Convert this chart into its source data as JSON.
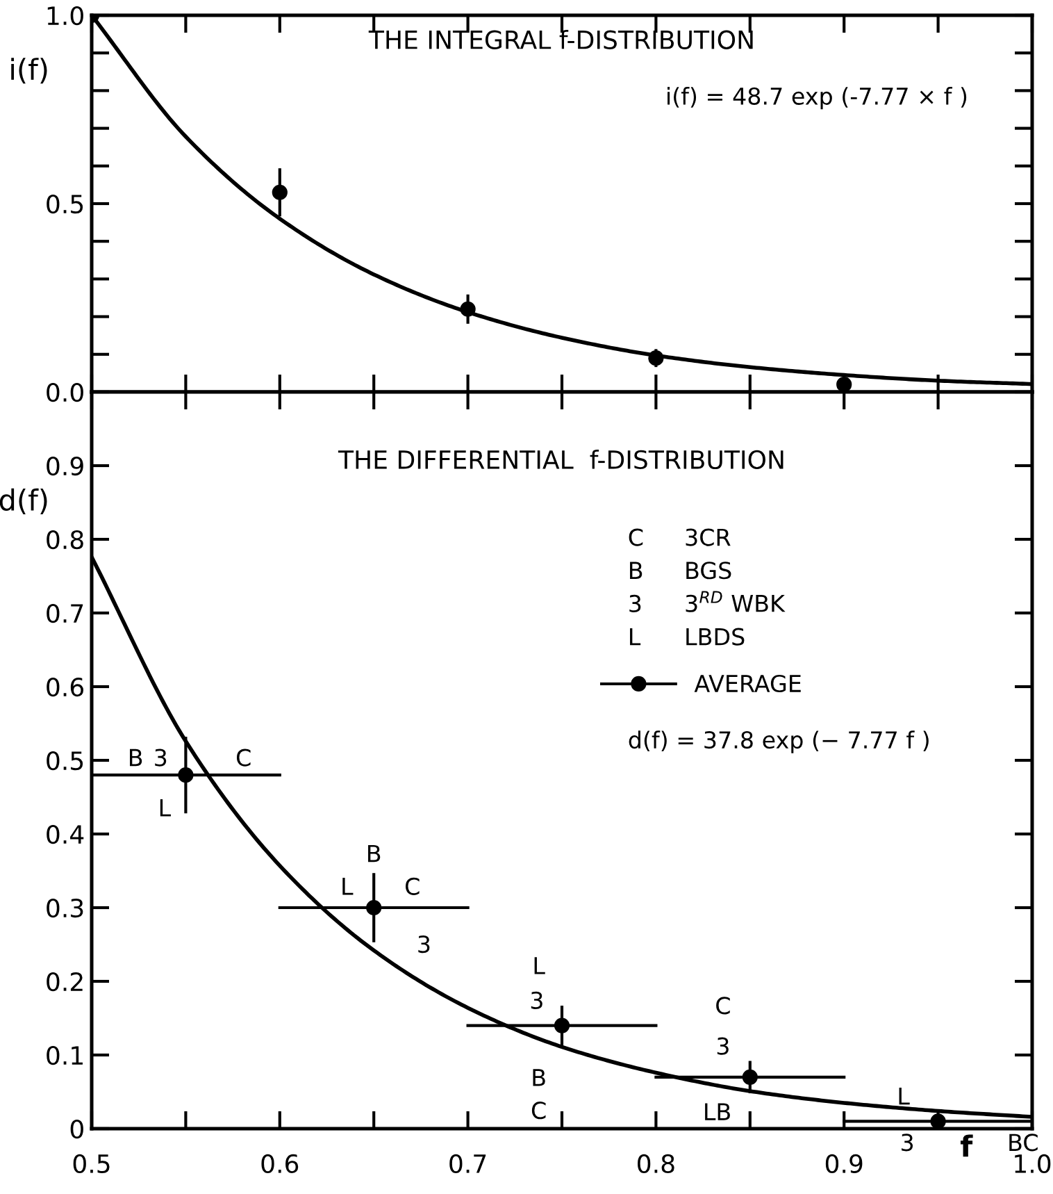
{
  "chart_data": [
    {
      "type": "scatter",
      "title": "THE INTEGRAL f-DISTRIBUTION",
      "ylabel": "i(f)",
      "xlim": [
        0.5,
        1.0
      ],
      "ylim": [
        0,
        1.0
      ],
      "xticks": [
        {
          "value": 0.5,
          "label": null
        },
        {
          "value": 0.55,
          "label": null
        },
        {
          "value": 0.6,
          "label": null
        },
        {
          "value": 0.65,
          "label": null
        },
        {
          "value": 0.7,
          "label": null
        },
        {
          "value": 0.75,
          "label": null
        },
        {
          "value": 0.8,
          "label": null
        },
        {
          "value": 0.85,
          "label": null
        },
        {
          "value": 0.9,
          "label": null
        },
        {
          "value": 0.95,
          "label": null
        },
        {
          "value": 1.0,
          "label": null
        }
      ],
      "yticks": [
        {
          "value": 0,
          "label": "0.0"
        },
        {
          "value": 0.1,
          "label": null
        },
        {
          "value": 0.2,
          "label": null
        },
        {
          "value": 0.3,
          "label": null
        },
        {
          "value": 0.4,
          "label": null
        },
        {
          "value": 0.5,
          "label": "0.5"
        },
        {
          "value": 0.6,
          "label": null
        },
        {
          "value": 0.7,
          "label": null
        },
        {
          "value": 0.8,
          "label": null
        },
        {
          "value": 0.9,
          "label": null
        },
        {
          "value": 1.0,
          "label": "1.0"
        }
      ],
      "tick_labels": "y",
      "grid": false,
      "annotations": [
        "i(f) = 48.7 exp (-7.77 × f )"
      ],
      "series": [
        {
          "color": "#000000",
          "marker": "circle",
          "x": [
            0.5,
            0.6,
            0.7,
            0.8,
            0.9
          ],
          "values": [
            1.0,
            0.53,
            0.22,
            0.09,
            0.02
          ],
          "errors": [
            null,
            0.06,
            0.035,
            0.02,
            null
          ]
        },
        {
          "type": "line",
          "color": "#000000",
          "line_style": "solid",
          "x": [
            0.5,
            0.55,
            0.6,
            0.65,
            0.7,
            0.75,
            0.8,
            0.85,
            0.9,
            0.95,
            1.0
          ],
          "values": [
            1.0,
            0.678,
            0.46,
            0.312,
            0.212,
            0.144,
            0.097,
            0.066,
            0.045,
            0.03,
            0.021
          ]
        }
      ]
    },
    {
      "type": "scatter",
      "title": "THE DIFFERENTIAL  f-DISTRIBUTION",
      "ylabel": "d(f)",
      "xlabel": "f",
      "xlim": [
        0.5,
        1.0
      ],
      "ylim": [
        0,
        1.0
      ],
      "xticks": [
        {
          "value": 0.5,
          "label": "0.5"
        },
        {
          "value": 0.55,
          "label": null
        },
        {
          "value": 0.6,
          "label": "0.6"
        },
        {
          "value": 0.65,
          "label": null
        },
        {
          "value": 0.7,
          "label": "0.7"
        },
        {
          "value": 0.75,
          "label": null
        },
        {
          "value": 0.8,
          "label": "0.8"
        },
        {
          "value": 0.85,
          "label": null
        },
        {
          "value": 0.9,
          "label": "0.9"
        },
        {
          "value": 0.95,
          "label": null
        },
        {
          "value": 1.0,
          "label": "1.0"
        }
      ],
      "yticks": [
        0,
        0.1,
        0.2,
        0.3,
        0.4,
        0.5,
        0.6,
        0.7,
        0.8,
        0.9,
        {
          "value": 1.0,
          "label": null
        }
      ],
      "grid": false,
      "legend": "top",
      "annotations": [
        "C",
        "3CR",
        "B",
        "BGS",
        "3",
        "3$^{RD}$ WBK",
        "L",
        "LBDS",
        "d(f) = 37.8 exp (− 7.77 f )",
        "B",
        "3",
        "C",
        "L",
        "B",
        "L",
        "C",
        "3",
        "L",
        "3",
        "B",
        "C",
        "C",
        "3",
        "LB",
        "L",
        "3",
        "BC"
      ],
      "series": [
        {
          "name": "AVERAGE",
          "color": "#000000",
          "marker": "circle",
          "x": [
            0.55,
            0.65,
            0.75,
            0.85,
            0.95
          ],
          "values": [
            0.48,
            0.3,
            0.14,
            0.07,
            0.01
          ],
          "errors": [
            0.05,
            0.045,
            0.025,
            0.02,
            null
          ],
          "xerrors": [
            0.05,
            0.05,
            0.05,
            0.05,
            0.05
          ]
        },
        {
          "type": "line",
          "color": "#000000",
          "line_style": "solid",
          "x": [
            0.5,
            0.55,
            0.6,
            0.65,
            0.7,
            0.75,
            0.8,
            0.85,
            0.9,
            0.95,
            1.0
          ],
          "values": [
            0.776,
            0.526,
            0.357,
            0.242,
            0.164,
            0.111,
            0.076,
            0.051,
            0.035,
            0.024,
            0.016
          ]
        }
      ]
    }
  ]
}
